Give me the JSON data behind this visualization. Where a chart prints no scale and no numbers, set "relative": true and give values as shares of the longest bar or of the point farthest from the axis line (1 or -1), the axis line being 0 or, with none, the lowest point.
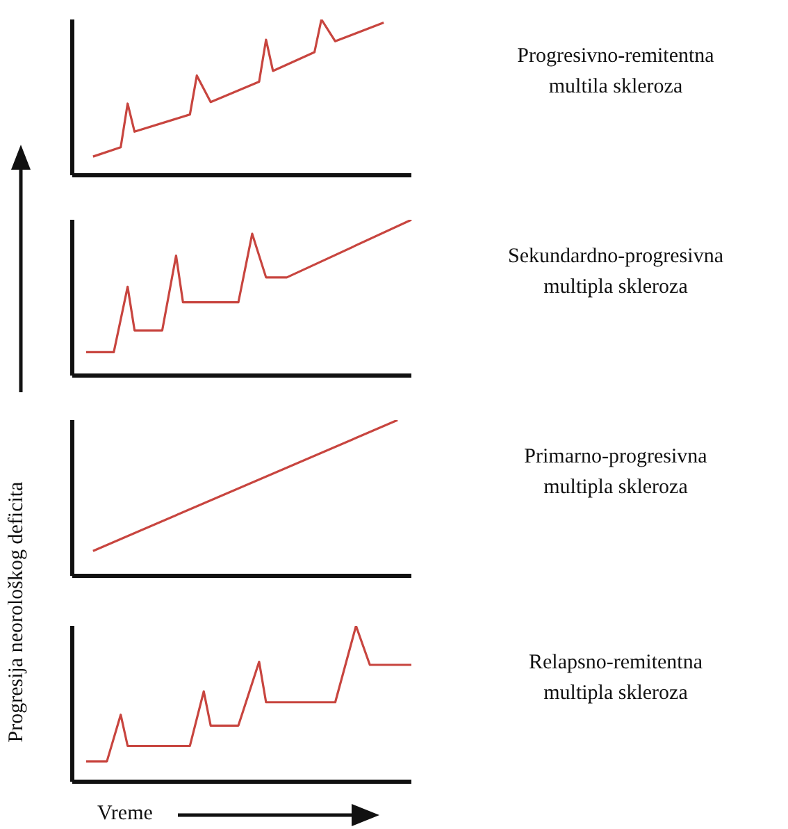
{
  "chart_data": [
    {
      "type": "line",
      "annotations": [
        "Progresivno-remitentna multila skleroza"
      ],
      "relative": true,
      "marker": "none",
      "line_style": "solid",
      "categories": [
        null,
        null,
        null,
        null,
        null,
        null,
        null,
        null,
        null,
        null,
        null,
        null,
        null,
        null,
        null,
        null,
        null,
        null,
        null,
        null,
        null,
        null,
        null,
        null,
        null,
        null,
        null,
        null,
        null,
        null,
        null,
        null,
        null,
        null,
        null,
        null,
        null,
        null,
        null,
        null,
        null,
        null,
        null,
        null,
        null,
        null,
        null,
        null,
        null,
        null
      ],
      "series": [
        {
          "color": "#c8453f",
          "values": [
            null,
            null,
            null,
            0.12,
            null,
            null,
            null,
            0.18,
            0.46,
            0.28,
            null,
            null,
            null,
            null,
            null,
            null,
            null,
            0.39,
            0.64,
            null,
            0.47,
            null,
            null,
            null,
            null,
            null,
            null,
            0.6,
            0.87,
            0.67,
            null,
            null,
            null,
            null,
            null,
            0.79,
            1,
            null,
            0.86,
            null,
            null,
            null,
            null,
            null,
            null,
            0.98,
            null,
            null,
            null,
            null
          ]
        }
      ]
    },
    {
      "type": "line",
      "annotations": [
        "Sekundardno-progresivna multipla skleroza"
      ],
      "relative": true,
      "marker": "none",
      "line_style": "solid",
      "categories": [
        null,
        null,
        null,
        null,
        null,
        null,
        null,
        null,
        null,
        null,
        null,
        null,
        null,
        null,
        null,
        null,
        null,
        null,
        null,
        null,
        null,
        null,
        null,
        null,
        null,
        null,
        null,
        null,
        null,
        null,
        null,
        null,
        null,
        null,
        null,
        null,
        null,
        null,
        null,
        null,
        null,
        null,
        null,
        null,
        null,
        null,
        null,
        null,
        null,
        null
      ],
      "series": [
        {
          "color": "#c8453f",
          "values": [
            null,
            null,
            0.15,
            null,
            null,
            null,
            0.15,
            null,
            0.57,
            0.29,
            null,
            null,
            null,
            0.29,
            null,
            0.77,
            0.47,
            null,
            null,
            null,
            null,
            null,
            null,
            null,
            0.47,
            null,
            0.91,
            null,
            0.63,
            null,
            null,
            0.63,
            null,
            null,
            null,
            null,
            null,
            null,
            null,
            null,
            null,
            null,
            null,
            null,
            null,
            null,
            null,
            null,
            null,
            1
          ]
        }
      ]
    },
    {
      "type": "line",
      "annotations": [
        "Primarno-progresivna multipla skleroza"
      ],
      "relative": true,
      "marker": "none",
      "line_style": "solid",
      "categories": [
        null,
        null,
        null,
        null,
        null,
        null,
        null,
        null,
        null,
        null,
        null,
        null,
        null,
        null,
        null,
        null,
        null,
        null,
        null,
        null,
        null,
        null,
        null,
        null,
        null,
        null,
        null,
        null,
        null,
        null,
        null,
        null,
        null,
        null,
        null,
        null,
        null,
        null,
        null,
        null,
        null,
        null,
        null,
        null,
        null,
        null,
        null,
        null,
        null,
        null
      ],
      "series": [
        {
          "color": "#c8453f",
          "values": [
            null,
            null,
            null,
            0.16,
            null,
            null,
            null,
            null,
            null,
            null,
            null,
            null,
            null,
            null,
            null,
            null,
            null,
            null,
            null,
            null,
            null,
            null,
            null,
            null,
            null,
            null,
            null,
            null,
            null,
            null,
            null,
            null,
            null,
            null,
            null,
            null,
            null,
            null,
            null,
            null,
            null,
            null,
            null,
            null,
            null,
            null,
            null,
            1,
            null,
            null
          ]
        }
      ]
    },
    {
      "type": "line",
      "annotations": [
        "Relapsno-remitentna multipla skleroza"
      ],
      "xlabel": "Vreme",
      "ylabel": "Progresija neorološkog deficita",
      "relative": true,
      "marker": "none",
      "line_style": "solid",
      "categories": [
        null,
        null,
        null,
        null,
        null,
        null,
        null,
        null,
        null,
        null,
        null,
        null,
        null,
        null,
        null,
        null,
        null,
        null,
        null,
        null,
        null,
        null,
        null,
        null,
        null,
        null,
        null,
        null,
        null,
        null,
        null,
        null,
        null,
        null,
        null,
        null,
        null,
        null,
        null,
        null,
        null,
        null,
        null,
        null,
        null,
        null,
        null,
        null,
        null,
        null
      ],
      "series": [
        {
          "color": "#c8453f",
          "values": [
            null,
            null,
            0.13,
            null,
            null,
            0.13,
            null,
            0.43,
            0.23,
            null,
            null,
            null,
            null,
            null,
            null,
            null,
            null,
            0.23,
            null,
            0.58,
            0.36,
            null,
            null,
            null,
            0.36,
            null,
            null,
            0.77,
            0.51,
            null,
            null,
            null,
            null,
            null,
            null,
            null,
            null,
            null,
            0.51,
            null,
            null,
            1,
            null,
            0.75,
            null,
            null,
            null,
            null,
            null,
            0.75
          ]
        }
      ]
    }
  ]
}
